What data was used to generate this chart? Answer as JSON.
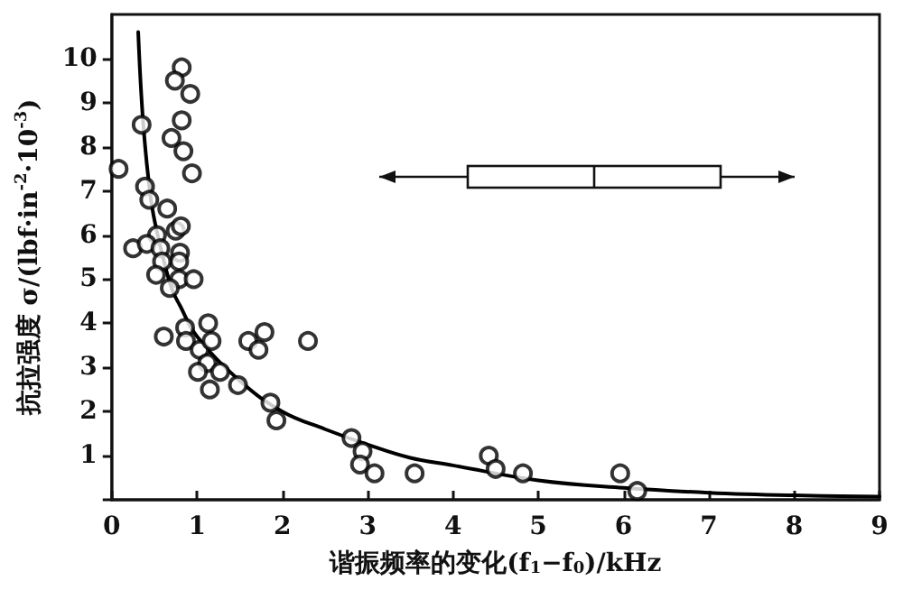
{
  "chart_data": {
    "type": "scatter",
    "xlabel": "谐振频率的变化(f$_{1}$−f$_{0}$)/kHz",
    "ylabel": "抗拉强度 σ/(lbf·in$^{-2}$·10$^{-3}$)",
    "xlim": [
      0,
      9
    ],
    "ylim": [
      0,
      11
    ],
    "xticks": [
      0,
      1,
      2,
      3,
      4,
      5,
      6,
      7,
      8,
      9
    ],
    "yticks": [
      {
        "value": 0,
        "label": null
      },
      1,
      2,
      3,
      4,
      5,
      6,
      7,
      8,
      9,
      10
    ],
    "marker": "circle",
    "grid": false,
    "series": [
      {
        "color": "#000000",
        "x": [
          0.08,
          0.35,
          0.39,
          0.44,
          0.65,
          0.53,
          0.25,
          0.41,
          0.57,
          0.75,
          0.81,
          0.8,
          0.79,
          0.59,
          0.52,
          0.79,
          0.96,
          0.82,
          0.74,
          0.92,
          0.82,
          0.7,
          0.84,
          0.94,
          0.68,
          0.61,
          0.86,
          0.87,
          1.03,
          1.13,
          1.17,
          1.12,
          1.01,
          1.27,
          1.15,
          1.48,
          1.6,
          1.72,
          1.79,
          2.3,
          1.86,
          1.93,
          2.81,
          2.94,
          2.91,
          3.08,
          3.55,
          4.42,
          4.5,
          4.82,
          5.96,
          6.16
        ],
        "values": [
          7.5,
          8.5,
          7.1,
          6.8,
          6.6,
          6.0,
          5.7,
          5.8,
          5.7,
          6.1,
          6.2,
          5.6,
          5.4,
          5.4,
          5.1,
          5.0,
          5.0,
          9.8,
          9.5,
          9.2,
          8.6,
          8.2,
          7.9,
          7.4,
          4.8,
          3.7,
          3.9,
          3.6,
          3.4,
          4.0,
          3.6,
          3.1,
          2.9,
          2.9,
          2.5,
          2.6,
          3.6,
          3.4,
          3.8,
          3.6,
          2.2,
          1.8,
          1.4,
          1.1,
          0.8,
          0.6,
          0.6,
          1.0,
          0.7,
          0.6,
          0.6,
          0.2
        ]
      },
      {
        "type": "line",
        "marker": "none",
        "line_style": "solid",
        "color": "#000000",
        "x": [
          0.31,
          0.37,
          0.46,
          0.55,
          0.7,
          0.8,
          1,
          1.5,
          2,
          2.5,
          3,
          3.5,
          4,
          5,
          6,
          7,
          8,
          9
        ],
        "values": [
          10.6,
          8.5,
          6.8,
          5.9,
          4.8,
          4.4,
          3.7,
          2.7,
          2.0,
          1.6,
          1.25,
          0.95,
          0.78,
          0.44,
          0.27,
          0.16,
          0.1,
          0.07
        ]
      }
    ]
  }
}
